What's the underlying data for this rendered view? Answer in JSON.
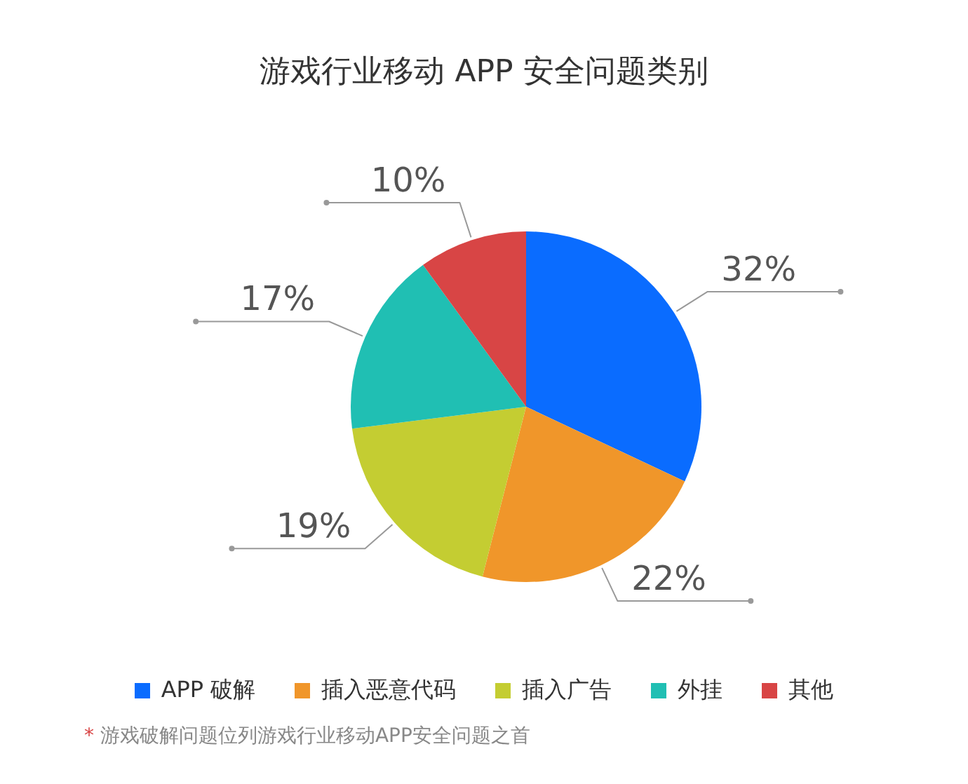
{
  "chart_data": {
    "type": "pie",
    "title": "游戏行业移动 APP 安全问题类别",
    "categories": [
      "APP 破解",
      "插入恶意代码",
      "插入广告",
      "外挂",
      "其他"
    ],
    "values": [
      32,
      22,
      19,
      17,
      10
    ],
    "colors": [
      "#0a6cff",
      "#f0962a",
      "#c4cd32",
      "#20bfb3",
      "#d84545"
    ],
    "value_labels": [
      "32%",
      "22%",
      "19%",
      "17%",
      "10%"
    ],
    "legend": "bottom",
    "annotations": [
      "* 游戏破解问题位列游戏行业移动APP安全问题之首"
    ]
  }
}
